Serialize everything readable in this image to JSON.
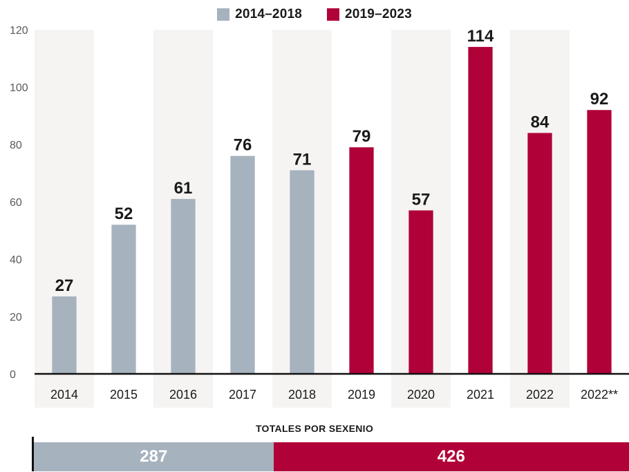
{
  "legend": [
    {
      "label": "2014–2018",
      "color": "#a7b2bf"
    },
    {
      "label": "2019–2023",
      "color": "#b00238"
    }
  ],
  "chart_data": {
    "type": "bar",
    "categories": [
      "2014",
      "2015",
      "2016",
      "2017",
      "2018",
      "2019",
      "2020",
      "2021",
      "2022",
      "2022**"
    ],
    "values": [
      27,
      52,
      61,
      76,
      71,
      79,
      57,
      114,
      84,
      92
    ],
    "groups": [
      "2014–2018",
      "2014–2018",
      "2014–2018",
      "2014–2018",
      "2014–2018",
      "2019–2023",
      "2019–2023",
      "2019–2023",
      "2019–2023",
      "2019–2023"
    ],
    "yticks": [
      0,
      20,
      40,
      60,
      80,
      100,
      120
    ],
    "ylim": [
      0,
      120
    ],
    "grid": false,
    "legend_position": "top-center"
  },
  "totals": {
    "title": "TOTALES POR SEXENIO",
    "items": [
      {
        "label": "287",
        "value": 287,
        "color": "#a7b2bf"
      },
      {
        "label": "426",
        "value": 426,
        "color": "#b00238"
      }
    ]
  }
}
